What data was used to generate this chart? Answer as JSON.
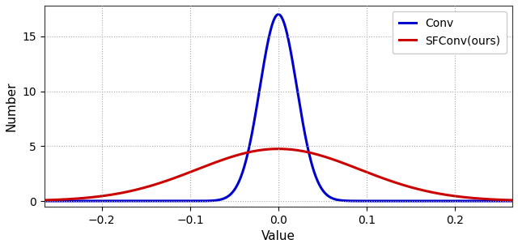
{
  "title": "",
  "xlabel": "Value",
  "ylabel": "Number",
  "xlim": [
    -0.265,
    0.265
  ],
  "ylim": [
    -0.5,
    17.8
  ],
  "xticks": [
    -0.2,
    -0.1,
    0.0,
    0.1,
    0.2
  ],
  "yticks": [
    0,
    5,
    10,
    15
  ],
  "conv_color": "#0000cc",
  "sfconv_color": "#cc0000",
  "conv_label": "Conv",
  "sfconv_label": "SFConv(ours)",
  "conv_mu": 0.0,
  "conv_sigma": 0.021,
  "conv_amplitude": 17.0,
  "sfconv_mu": 0.0,
  "sfconv_sigma": 0.092,
  "sfconv_amplitude": 4.75,
  "conv_linewidth": 2.2,
  "sfconv_linewidth": 2.2,
  "grid_color": "#aaaaaa",
  "grid_linestyle": ":",
  "grid_alpha": 1.0,
  "background_color": "#ffffff",
  "legend_fontsize": 10,
  "axis_fontsize": 11,
  "tick_fontsize": 10
}
